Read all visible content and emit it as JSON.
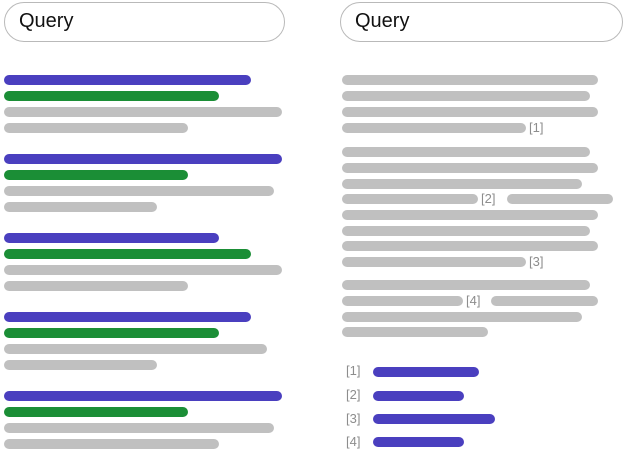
{
  "left_panel": {
    "query_label": "Query",
    "results": [
      {
        "lines": [
          "blue",
          "green",
          "gray",
          "gray"
        ]
      },
      {
        "lines": [
          "blue",
          "green",
          "gray",
          "gray"
        ]
      },
      {
        "lines": [
          "blue",
          "green",
          "gray",
          "gray"
        ]
      },
      {
        "lines": [
          "blue",
          "green",
          "gray",
          "gray"
        ]
      },
      {
        "lines": [
          "blue",
          "green",
          "gray",
          "gray"
        ]
      }
    ]
  },
  "right_panel": {
    "query_label": "Query",
    "citation_markers": [
      "[1]",
      "[2]",
      "[3]",
      "[4]"
    ],
    "references": [
      {
        "marker": "[1]"
      },
      {
        "marker": "[2]"
      },
      {
        "marker": "[3]"
      },
      {
        "marker": "[4]"
      }
    ]
  },
  "colors": {
    "title_line": "#4a3fbf",
    "snippet_line": "#1b8e36",
    "text_line": "#c0c0c0",
    "marker_text": "#8d8d8d"
  }
}
